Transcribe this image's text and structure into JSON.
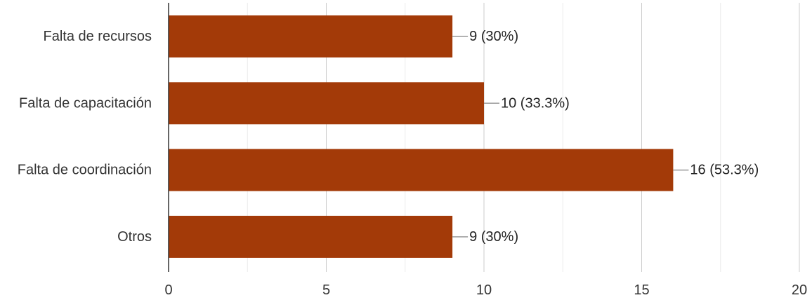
{
  "chart_data": {
    "type": "bar",
    "orientation": "horizontal",
    "title": "",
    "xlabel": "",
    "ylabel": "",
    "categories": [
      "Falta de recursos",
      "Falta de capacitación",
      "Falta de coordinación",
      "Otros"
    ],
    "values": [
      9,
      10,
      16,
      9
    ],
    "data_labels": [
      "9 (30%)",
      "10 (33.3%)",
      "16 (53.3%)",
      "9 (30%)"
    ],
    "xlim": [
      0,
      20
    ],
    "xticks": [
      0,
      5,
      10,
      15,
      20
    ],
    "xtick_labels": [
      "0",
      "5",
      "10",
      "15",
      "20"
    ],
    "grid": true,
    "legend": "none",
    "colors": {
      "bar": "#a33a08",
      "grid_major": "#cccccc",
      "grid_minor": "#ebebeb",
      "axis": "#333333",
      "leader": "#999999"
    }
  }
}
